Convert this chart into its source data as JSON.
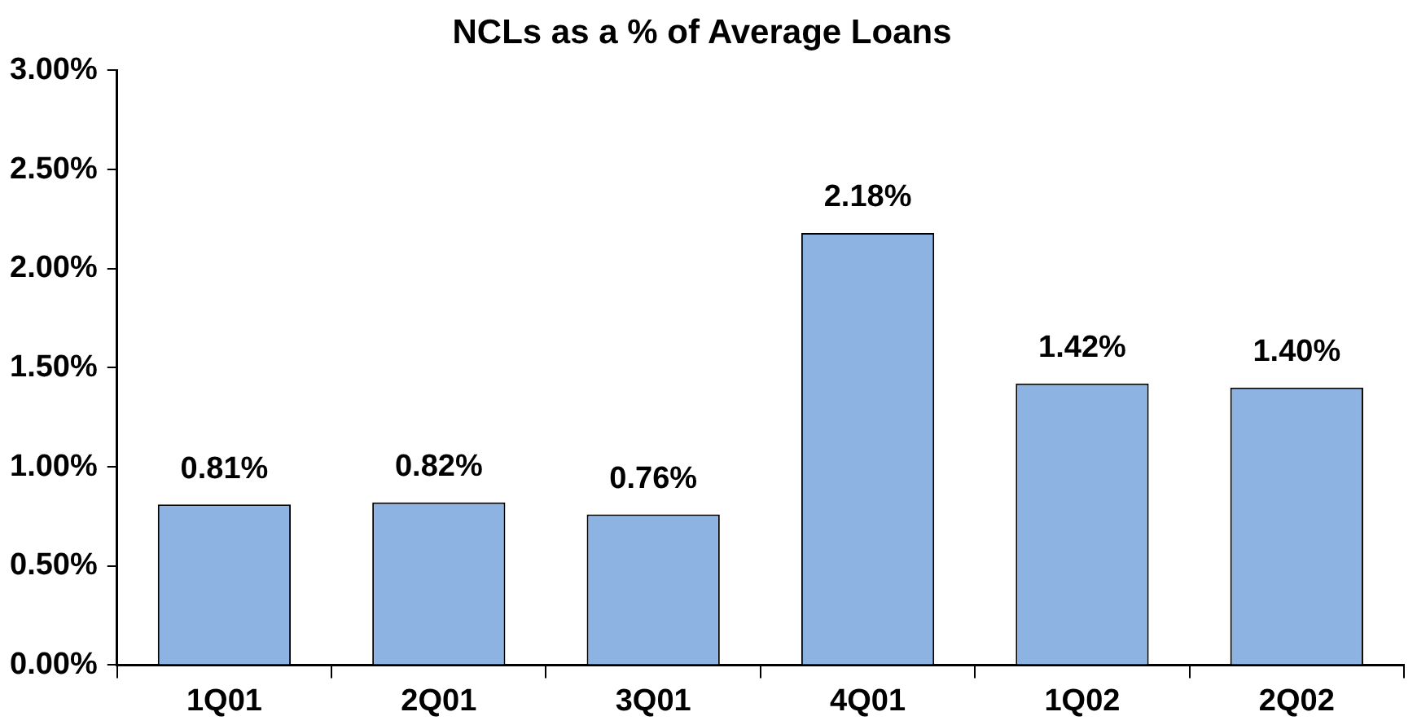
{
  "chart_data": {
    "type": "bar",
    "title": "NCLs as a % of Average Loans",
    "categories": [
      "1Q01",
      "2Q01",
      "3Q01",
      "4Q01",
      "1Q02",
      "2Q02"
    ],
    "values": [
      0.81,
      0.82,
      0.76,
      2.18,
      1.42,
      1.4
    ],
    "value_labels": [
      "0.81%",
      "0.82%",
      "0.76%",
      "2.18%",
      "1.42%",
      "1.40%"
    ],
    "color": "#8db3e2",
    "ylim": [
      0,
      3
    ],
    "yticks": [
      {
        "value": 0,
        "label": "0.00%"
      },
      {
        "value": 0.5,
        "label": "0.50%"
      },
      {
        "value": 1,
        "label": "1.00%"
      },
      {
        "value": 1.5,
        "label": "1.50%"
      },
      {
        "value": 2,
        "label": "2.00%"
      },
      {
        "value": 2.5,
        "label": "2.50%"
      },
      {
        "value": 3,
        "label": "3.00%"
      }
    ],
    "grid": false,
    "legend": false
  }
}
